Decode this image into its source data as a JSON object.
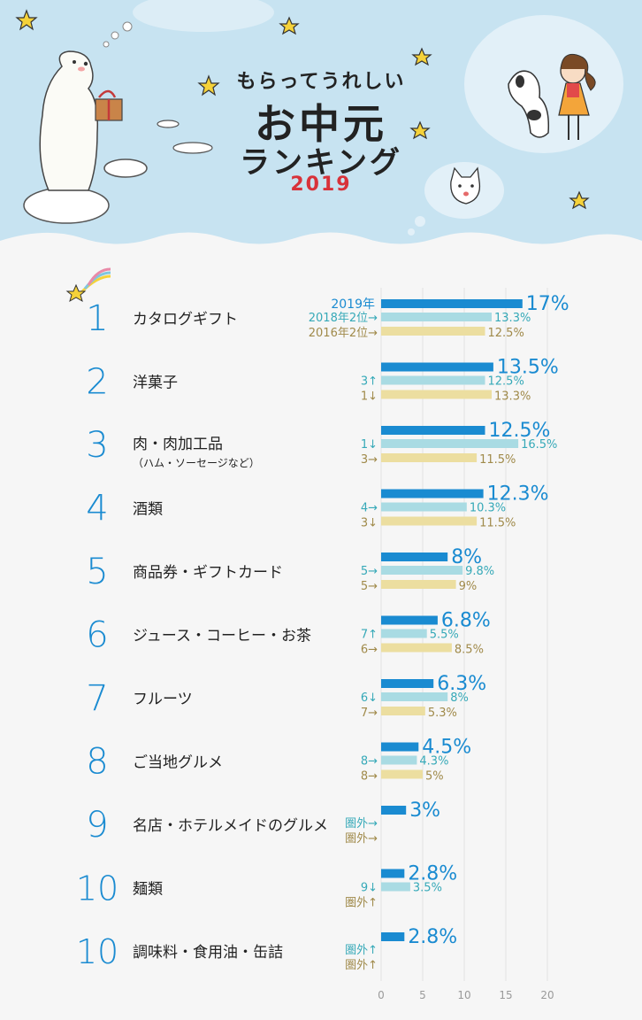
{
  "header": {
    "line1": "もらってうれしい",
    "line2": "お中元",
    "line3": "ランキング",
    "year": "2019"
  },
  "legend": {
    "current": "2019年",
    "prev2018": "2018年2位→",
    "prev2016": "2016年2位→"
  },
  "colors": {
    "current": "#1a8bd1",
    "prev2018": "#a9dbe3",
    "prev2016": "#ecdea0",
    "rank_number": "#1a8bd1",
    "label_2018": "#36a9b8",
    "label_2016": "#a08a4a"
  },
  "chart_data": {
    "type": "bar",
    "orientation": "horizontal",
    "xlim": [
      0,
      20
    ],
    "xticks": [
      0,
      5,
      10,
      15,
      20
    ],
    "grid": true,
    "categories": [
      {
        "rank": "1",
        "label": "カタログギフト",
        "sub": "",
        "v2019": 17,
        "v2018": 13.3,
        "v2016": 12.5,
        "l2019": "17%",
        "l2018": "13.3%",
        "l2016": "12.5%",
        "m2018": "2018年2位→",
        "m2016": "2016年2位→"
      },
      {
        "rank": "2",
        "label": "洋菓子",
        "sub": "",
        "v2019": 13.5,
        "v2018": 12.5,
        "v2016": 13.3,
        "l2019": "13.5%",
        "l2018": "12.5%",
        "l2016": "13.3%",
        "m2018": "3↑",
        "m2016": "1↓"
      },
      {
        "rank": "3",
        "label": "肉・肉加工品",
        "sub": "（ハム・ソーセージなど）",
        "v2019": 12.5,
        "v2018": 16.5,
        "v2016": 11.5,
        "l2019": "12.5%",
        "l2018": "16.5%",
        "l2016": "11.5%",
        "m2018": "1↓",
        "m2016": "3→"
      },
      {
        "rank": "4",
        "label": "酒類",
        "sub": "",
        "v2019": 12.3,
        "v2018": 10.3,
        "v2016": 11.5,
        "l2019": "12.3%",
        "l2018": "10.3%",
        "l2016": "11.5%",
        "m2018": "4→",
        "m2016": "3↓"
      },
      {
        "rank": "5",
        "label": "商品券・ギフトカード",
        "sub": "",
        "v2019": 8,
        "v2018": 9.8,
        "v2016": 9,
        "l2019": "8%",
        "l2018": "9.8%",
        "l2016": "9%",
        "m2018": "5→",
        "m2016": "5→"
      },
      {
        "rank": "6",
        "label": "ジュース・コーヒー・お茶",
        "sub": "",
        "v2019": 6.8,
        "v2018": 5.5,
        "v2016": 8.5,
        "l2019": "6.8%",
        "l2018": "5.5%",
        "l2016": "8.5%",
        "m2018": "7↑",
        "m2016": "6→"
      },
      {
        "rank": "7",
        "label": "フルーツ",
        "sub": "",
        "v2019": 6.3,
        "v2018": 8,
        "v2016": 5.3,
        "l2019": "6.3%",
        "l2018": "8%",
        "l2016": "5.3%",
        "m2018": "6↓",
        "m2016": "7→"
      },
      {
        "rank": "8",
        "label": "ご当地グルメ",
        "sub": "",
        "v2019": 4.5,
        "v2018": 4.3,
        "v2016": 5,
        "l2019": "4.5%",
        "l2018": "4.3%",
        "l2016": "5%",
        "m2018": "8→",
        "m2016": "8→"
      },
      {
        "rank": "9",
        "label": "名店・ホテルメイドのグルメ",
        "sub": "",
        "v2019": 3,
        "v2018": null,
        "v2016": null,
        "l2019": "3%",
        "l2018": "",
        "l2016": "",
        "m2018": "圏外→",
        "m2016": "圏外→"
      },
      {
        "rank": "10",
        "label": "麺類",
        "sub": "",
        "v2019": 2.8,
        "v2018": 3.5,
        "v2016": null,
        "l2019": "2.8%",
        "l2018": "3.5%",
        "l2016": "",
        "m2018": "9↓",
        "m2016": "圏外↑"
      },
      {
        "rank": "10",
        "label": "調味料・食用油・缶詰",
        "sub": "",
        "v2019": 2.8,
        "v2018": null,
        "v2016": null,
        "l2019": "2.8%",
        "l2018": "",
        "l2016": "",
        "m2018": "圏外↑",
        "m2016": "圏外↑"
      }
    ]
  }
}
